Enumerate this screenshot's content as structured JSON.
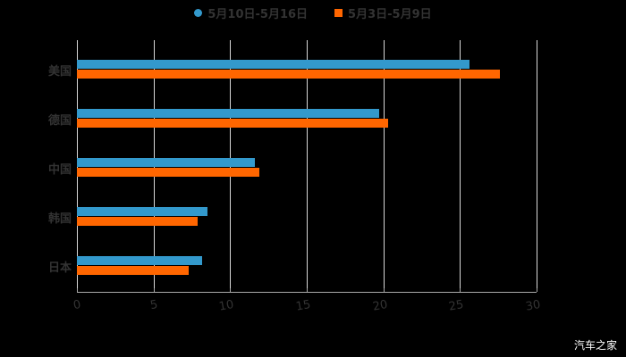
{
  "chart_data": {
    "type": "bar",
    "orientation": "horizontal",
    "title": "",
    "categories": [
      "美国",
      "德国",
      "中国",
      "韩国",
      "日本"
    ],
    "series": [
      {
        "name": "5月10日-5月16日",
        "color": "#3399cc",
        "values": [
          25.6,
          19.7,
          11.6,
          8.5,
          8.2
        ]
      },
      {
        "name": "5月3日-5月9日",
        "color": "#ff6600",
        "values": [
          27.6,
          20.3,
          11.9,
          7.9,
          7.3
        ]
      }
    ],
    "xlabel": "",
    "ylabel": "",
    "xlim": [
      0,
      30
    ],
    "xticks": [
      "0",
      "5",
      "10",
      "15",
      "20",
      "25",
      "30"
    ],
    "grid": true,
    "legend_position": "top"
  },
  "legend": {
    "series1": "5月10日-5月16日",
    "series2": "5月3日-5月9日"
  },
  "colors": {
    "series1": "#3399cc",
    "series2": "#ff6600",
    "background": "#000000"
  },
  "watermark": "汽车之家"
}
